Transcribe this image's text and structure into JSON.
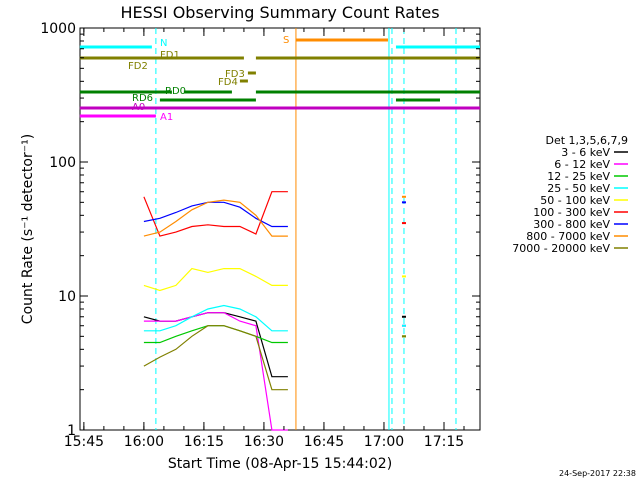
{
  "chart_data": {
    "type": "line",
    "title": "HESSI Observing Summary Count Rates",
    "xlabel": "Start Time (08-Apr-15 15:44:02)",
    "ylabel": "Count Rate (s⁻¹ detector⁻¹)",
    "y_scale": "log",
    "ylim": [
      1,
      1000
    ],
    "xlim": [
      "15:44",
      "17:24"
    ],
    "x_ticks": [
      "15:45",
      "16:00",
      "16:15",
      "16:30",
      "16:45",
      "17:00",
      "17:15"
    ],
    "y_ticks": [
      "1",
      "10",
      "100",
      "1000"
    ],
    "legend": {
      "title": "Det 1,3,5,6,7,9",
      "placement": "right"
    },
    "series": [
      {
        "name": "3 - 6 keV",
        "color": "#000000",
        "x": [
          "16:00",
          "16:04",
          "16:08",
          "16:12",
          "16:16",
          "16:20",
          "16:24",
          "16:28",
          "16:32",
          "16:36",
          "17:05"
        ],
        "y": [
          7,
          6.5,
          6.5,
          7,
          7.5,
          7.5,
          7,
          6.5,
          2.5,
          2.5,
          7
        ]
      },
      {
        "name": "6 - 12 keV",
        "color": "#ff00ff",
        "x": [
          "16:00",
          "16:04",
          "16:08",
          "16:12",
          "16:16",
          "16:20",
          "16:24",
          "16:28",
          "16:32",
          "16:36",
          "17:05"
        ],
        "y": [
          6.5,
          6.5,
          6.5,
          7,
          7.5,
          7.5,
          6.5,
          6,
          1,
          1,
          6
        ]
      },
      {
        "name": "12 - 25 keV",
        "color": "#00c800",
        "x": [
          "16:00",
          "16:04",
          "16:08",
          "16:12",
          "16:16",
          "16:20",
          "16:24",
          "16:28",
          "16:32",
          "16:36",
          "17:05"
        ],
        "y": [
          4.5,
          4.5,
          5,
          5.5,
          6,
          6,
          5.5,
          5,
          4.5,
          4.5,
          5
        ]
      },
      {
        "name": "25 - 50 keV",
        "color": "#00ffff",
        "x": [
          "16:00",
          "16:04",
          "16:08",
          "16:12",
          "16:16",
          "16:20",
          "16:24",
          "16:28",
          "16:32",
          "16:36",
          "17:05"
        ],
        "y": [
          5.5,
          5.5,
          6,
          7,
          8,
          8.5,
          8,
          7,
          5.5,
          5.5,
          6
        ]
      },
      {
        "name": "50 - 100 keV",
        "color": "#ffff00",
        "x": [
          "16:00",
          "16:04",
          "16:08",
          "16:12",
          "16:16",
          "16:20",
          "16:24",
          "16:28",
          "16:32",
          "16:36",
          "17:05"
        ],
        "y": [
          12,
          11,
          12,
          16,
          15,
          16,
          16,
          14,
          12,
          12,
          14
        ]
      },
      {
        "name": "100 - 300 keV",
        "color": "#ff0000",
        "x": [
          "16:00",
          "16:04",
          "16:08",
          "16:12",
          "16:16",
          "16:20",
          "16:24",
          "16:28",
          "16:32",
          "16:36",
          "17:05"
        ],
        "y": [
          55,
          28,
          30,
          33,
          34,
          33,
          33,
          29,
          60,
          60,
          35
        ]
      },
      {
        "name": "300 - 800 keV",
        "color": "#0000ff",
        "x": [
          "16:00",
          "16:04",
          "16:08",
          "16:12",
          "16:16",
          "16:20",
          "16:24",
          "16:28",
          "16:32",
          "16:36",
          "17:05"
        ],
        "y": [
          36,
          38,
          42,
          47,
          50,
          50,
          46,
          38,
          33,
          33,
          50
        ]
      },
      {
        "name": "800 - 7000 keV",
        "color": "#ff8c00",
        "x": [
          "16:00",
          "16:04",
          "16:08",
          "16:12",
          "16:16",
          "16:20",
          "16:24",
          "16:28",
          "16:32",
          "16:36",
          "17:05"
        ],
        "y": [
          28,
          30,
          36,
          44,
          50,
          52,
          50,
          40,
          28,
          28,
          55
        ]
      },
      {
        "name": "7000 - 20000 keV",
        "color": "#808000",
        "x": [
          "16:00",
          "16:04",
          "16:08",
          "16:12",
          "16:16",
          "16:20",
          "16:24",
          "16:28",
          "16:32",
          "16:36",
          "17:05"
        ],
        "y": [
          3,
          3.5,
          4,
          5,
          6,
          6,
          5.5,
          5,
          2,
          2,
          5
        ]
      }
    ],
    "flag_bars": [
      {
        "name": "N",
        "color": "#00ffff",
        "label": "N"
      },
      {
        "name": "FD1",
        "color": "#808000",
        "label": "FD1"
      },
      {
        "name": "FD2",
        "color": "#808000",
        "label": "FD2"
      },
      {
        "name": "FD3",
        "color": "#808000",
        "label": "FD3"
      },
      {
        "name": "FD4",
        "color": "#808000",
        "label": "FD4"
      },
      {
        "name": "RD0",
        "color": "#008000",
        "label": "RD0"
      },
      {
        "name": "RD6",
        "color": "#008000",
        "label": "RD6"
      },
      {
        "name": "A0",
        "color": "#c000c0",
        "label": "A0"
      },
      {
        "name": "A1",
        "color": "#ff00ff",
        "label": "A1"
      },
      {
        "name": "S",
        "color": "#ff8c00",
        "label": "S"
      }
    ],
    "grid": false
  },
  "footer": {
    "timestamp": "24-Sep-2017 22:38"
  },
  "colors": {
    "background": "#ffffff",
    "axis": "#000000"
  }
}
